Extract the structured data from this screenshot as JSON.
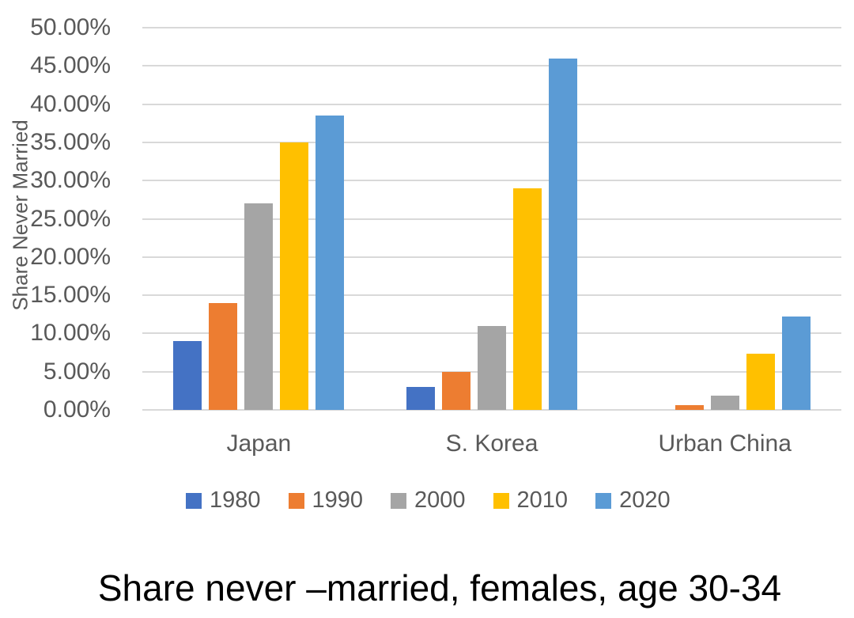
{
  "chart_data": {
    "type": "bar",
    "title": "Share never –married, females, age 30-34",
    "ylabel": "Share Never Married",
    "xlabel": "",
    "categories": [
      "Japan",
      "S. Korea",
      "Urban China"
    ],
    "series": [
      {
        "name": "1980",
        "color": "#4472C4",
        "values": [
          9.0,
          3.0,
          0.0
        ]
      },
      {
        "name": "1990",
        "color": "#ED7D31",
        "values": [
          14.0,
          5.0,
          0.6
        ]
      },
      {
        "name": "2000",
        "color": "#A5A5A5",
        "values": [
          27.0,
          11.0,
          1.9
        ]
      },
      {
        "name": "2010",
        "color": "#FFC000",
        "values": [
          35.0,
          29.0,
          7.4
        ]
      },
      {
        "name": "2020",
        "color": "#5B9BD5",
        "values": [
          38.5,
          46.0,
          12.2
        ]
      }
    ],
    "ylim": [
      0,
      50
    ],
    "y_tick_step": 5,
    "y_ticks": [
      "50.00%",
      "45.00%",
      "40.00%",
      "35.00%",
      "30.00%",
      "25.00%",
      "20.00%",
      "15.00%",
      "10.00%",
      "5.00%",
      "0.00%"
    ],
    "grid": true,
    "legend_position": "bottom-center",
    "colors": {
      "axis_text": "#595959",
      "gridline": "#D9D9D9",
      "title_text": "#000000",
      "background": "#FFFFFF"
    }
  }
}
